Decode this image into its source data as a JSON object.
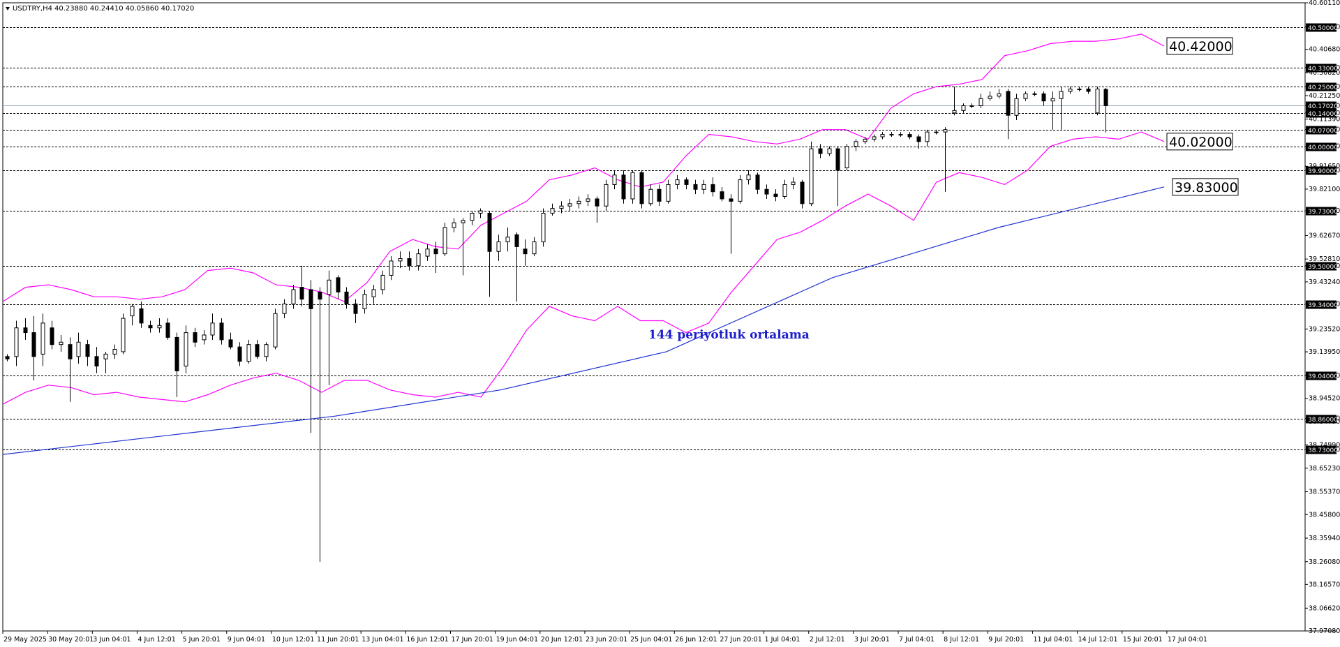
{
  "header": {
    "symbol": "USDTRY,H4",
    "ohlc": "40.23880 40.24410 40.05860 40.17020"
  },
  "annotation": "144 periyotluk ortalama",
  "chart_data": {
    "type": "candlestick",
    "symbol": "USDTRY",
    "timeframe": "H4",
    "last_ohlc": {
      "open": 40.2388,
      "high": 40.2441,
      "low": 40.0586,
      "close": 40.1702
    },
    "y_axis_ticks": [
      "40.60110",
      "40.50000",
      "40.40680",
      "40.33000",
      "40.30820",
      "40.25000",
      "40.21250",
      "40.17020",
      "40.14000",
      "40.11390",
      "40.07000",
      "40.00000",
      "39.91650",
      "39.90000",
      "39.82100",
      "39.73000",
      "39.62670",
      "39.52810",
      "39.50000",
      "39.43240",
      "39.34000",
      "39.23520",
      "39.13950",
      "39.04000",
      "38.94520",
      "38.86000",
      "38.84790",
      "38.74990",
      "38.73000",
      "38.65230",
      "38.55370",
      "38.45800",
      "38.35940",
      "38.26080",
      "38.16570",
      "38.06620",
      "37.97080"
    ],
    "ylim": [
      37.9708,
      40.6011
    ],
    "x_axis_ticks": [
      "29 May 2025",
      "30 May 20:01",
      "3 Jun 04:01",
      "4 Jun 12:01",
      "5 Jun 20:01",
      "9 Jun 04:01",
      "10 Jun 12:01",
      "11 Jun 20:01",
      "13 Jun 04:01",
      "16 Jun 12:01",
      "17 Jun 20:01",
      "19 Jun 04:01",
      "20 Jun 12:01",
      "23 Jun 20:01",
      "25 Jun 04:01",
      "26 Jun 12:01",
      "27 Jun 20:01",
      "1 Jul 04:01",
      "2 Jul 12:01",
      "3 Jul 20:01",
      "7 Jul 04:01",
      "8 Jul 12:01",
      "9 Jul 20:01",
      "11 Jul 04:01",
      "14 Jul 12:01",
      "15 Jul 20:01",
      "17 Jul 04:01"
    ],
    "horizontal_levels": [
      {
        "label": "40.50000",
        "value": 40.5
      },
      {
        "label": "40.33000",
        "value": 40.33
      },
      {
        "label": "40.25000",
        "value": 40.25
      },
      {
        "label": "40.14000",
        "value": 40.14
      },
      {
        "label": "40.07000",
        "value": 40.07
      },
      {
        "label": "40.00000",
        "value": 40.0
      },
      {
        "label": "39.90000",
        "value": 39.9
      },
      {
        "label": "39.73000",
        "value": 39.73
      },
      {
        "label": "39.50000",
        "value": 39.5
      },
      {
        "label": "39.34000",
        "value": 39.34
      },
      {
        "label": "39.04000",
        "value": 39.04
      },
      {
        "label": "38.86000",
        "value": 38.86
      },
      {
        "label": "38.73000",
        "value": 38.73
      }
    ],
    "current_price_label": "40.17020",
    "current_price": 40.1702,
    "callouts": [
      {
        "label": "40.42000",
        "value": 40.42
      },
      {
        "label": "40.02000",
        "value": 40.02
      },
      {
        "label": "39.83000",
        "value": 39.83
      }
    ],
    "series": [
      {
        "kind": "line",
        "color": "#ff00ff",
        "values": [
          38.92,
          38.97,
          39.0,
          38.99,
          38.96,
          38.97,
          38.95,
          38.94,
          38.93,
          38.96,
          39.0,
          39.03,
          39.05,
          39.02,
          38.97,
          39.02,
          39.02,
          38.98,
          38.96,
          38.95,
          38.97,
          38.95,
          39.08,
          39.23,
          39.33,
          39.29,
          39.27,
          39.33,
          39.27,
          39.27,
          39.22,
          39.26,
          39.39,
          39.5,
          39.61,
          39.64,
          39.69,
          39.75,
          39.8,
          39.75,
          39.69,
          39.85,
          39.89,
          39.87,
          39.84,
          39.9,
          40.0,
          40.03,
          40.04,
          40.03,
          40.06,
          40.02
        ],
        "bounds": [
          39.35,
          39.41,
          39.42,
          39.4,
          39.37,
          39.37,
          39.36,
          39.37,
          39.4,
          39.48,
          39.49,
          39.47,
          39.42,
          39.41,
          39.39,
          39.35,
          39.43,
          39.56,
          39.61,
          39.58,
          39.57,
          39.67,
          39.72,
          39.77,
          39.86,
          39.88,
          39.91,
          39.86,
          39.83,
          39.85,
          39.96,
          40.05,
          40.04,
          40.02,
          40.01,
          40.03,
          40.07,
          40.07,
          40.03,
          40.16,
          40.22,
          40.25,
          40.26,
          40.28,
          40.38,
          40.4,
          40.43,
          40.44,
          40.44,
          40.45,
          40.47,
          40.42
        ]
      },
      {
        "name": "144 periyotluk ortalama",
        "kind": "line",
        "color": "#1e32d2",
        "values": [
          38.71,
          38.79,
          38.87,
          38.98,
          39.14,
          39.45,
          39.66,
          39.83
        ]
      }
    ],
    "candles": [
      {
        "o": 39.12,
        "h": 39.13,
        "l": 39.1,
        "c": 39.11
      },
      {
        "o": 39.12,
        "h": 39.27,
        "l": 39.08,
        "c": 39.24
      },
      {
        "o": 39.24,
        "h": 39.28,
        "l": 39.19,
        "c": 39.22
      },
      {
        "o": 39.22,
        "h": 39.29,
        "l": 39.02,
        "c": 39.12
      },
      {
        "o": 39.13,
        "h": 39.3,
        "l": 39.08,
        "c": 39.26
      },
      {
        "o": 39.24,
        "h": 39.27,
        "l": 39.15,
        "c": 39.17
      },
      {
        "o": 39.17,
        "h": 39.21,
        "l": 39.14,
        "c": 39.18
      },
      {
        "o": 39.17,
        "h": 39.2,
        "l": 38.93,
        "c": 39.11
      },
      {
        "o": 39.12,
        "h": 39.22,
        "l": 39.09,
        "c": 39.18
      },
      {
        "o": 39.17,
        "h": 39.19,
        "l": 39.08,
        "c": 39.12
      },
      {
        "o": 39.12,
        "h": 39.16,
        "l": 39.05,
        "c": 39.08
      },
      {
        "o": 39.11,
        "h": 39.14,
        "l": 39.05,
        "c": 39.13
      },
      {
        "o": 39.13,
        "h": 39.17,
        "l": 39.11,
        "c": 39.15
      },
      {
        "o": 39.14,
        "h": 39.3,
        "l": 39.13,
        "c": 39.28
      },
      {
        "o": 39.29,
        "h": 39.34,
        "l": 39.25,
        "c": 39.33
      },
      {
        "o": 39.32,
        "h": 39.35,
        "l": 39.24,
        "c": 39.26
      },
      {
        "o": 39.25,
        "h": 39.27,
        "l": 39.22,
        "c": 39.24
      },
      {
        "o": 39.24,
        "h": 39.28,
        "l": 39.22,
        "c": 39.25
      },
      {
        "o": 39.26,
        "h": 39.28,
        "l": 39.19,
        "c": 39.2
      },
      {
        "o": 39.2,
        "h": 39.22,
        "l": 38.95,
        "c": 39.06
      },
      {
        "o": 39.08,
        "h": 39.25,
        "l": 39.05,
        "c": 39.22
      },
      {
        "o": 39.22,
        "h": 39.24,
        "l": 39.16,
        "c": 39.18
      },
      {
        "o": 39.19,
        "h": 39.23,
        "l": 39.17,
        "c": 39.21
      },
      {
        "o": 39.21,
        "h": 39.3,
        "l": 39.19,
        "c": 39.26
      },
      {
        "o": 39.26,
        "h": 39.28,
        "l": 39.17,
        "c": 39.19
      },
      {
        "o": 39.19,
        "h": 39.22,
        "l": 39.15,
        "c": 39.16
      },
      {
        "o": 39.16,
        "h": 39.18,
        "l": 39.08,
        "c": 39.1
      },
      {
        "o": 39.1,
        "h": 39.19,
        "l": 39.09,
        "c": 39.17
      },
      {
        "o": 39.17,
        "h": 39.19,
        "l": 39.11,
        "c": 39.12
      },
      {
        "o": 39.12,
        "h": 39.18,
        "l": 39.1,
        "c": 39.17
      },
      {
        "o": 39.16,
        "h": 39.32,
        "l": 39.15,
        "c": 39.3
      },
      {
        "o": 39.3,
        "h": 39.36,
        "l": 39.28,
        "c": 39.34
      },
      {
        "o": 39.34,
        "h": 39.42,
        "l": 39.32,
        "c": 39.4
      },
      {
        "o": 39.41,
        "h": 39.5,
        "l": 39.33,
        "c": 39.36
      },
      {
        "o": 39.4,
        "h": 39.44,
        "l": 38.8,
        "c": 39.32
      },
      {
        "o": 39.39,
        "h": 39.41,
        "l": 38.26,
        "c": 39.36
      },
      {
        "o": 39.38,
        "h": 39.48,
        "l": 39.0,
        "c": 39.44
      },
      {
        "o": 39.45,
        "h": 39.46,
        "l": 39.36,
        "c": 39.39
      },
      {
        "o": 39.39,
        "h": 39.41,
        "l": 39.32,
        "c": 39.34
      },
      {
        "o": 39.34,
        "h": 39.36,
        "l": 39.26,
        "c": 39.3
      },
      {
        "o": 39.32,
        "h": 39.4,
        "l": 39.3,
        "c": 39.38
      },
      {
        "o": 39.37,
        "h": 39.42,
        "l": 39.34,
        "c": 39.4
      },
      {
        "o": 39.4,
        "h": 39.48,
        "l": 39.38,
        "c": 39.46
      },
      {
        "o": 39.46,
        "h": 39.54,
        "l": 39.44,
        "c": 39.52
      },
      {
        "o": 39.52,
        "h": 39.56,
        "l": 39.49,
        "c": 39.53
      },
      {
        "o": 39.53,
        "h": 39.56,
        "l": 39.48,
        "c": 39.5
      },
      {
        "o": 39.5,
        "h": 39.57,
        "l": 39.48,
        "c": 39.55
      },
      {
        "o": 39.54,
        "h": 39.59,
        "l": 39.52,
        "c": 39.57
      },
      {
        "o": 39.57,
        "h": 39.6,
        "l": 39.47,
        "c": 39.55
      },
      {
        "o": 39.55,
        "h": 39.68,
        "l": 39.54,
        "c": 39.66
      },
      {
        "o": 39.66,
        "h": 39.7,
        "l": 39.64,
        "c": 39.68
      },
      {
        "o": 39.68,
        "h": 39.7,
        "l": 39.46,
        "c": 39.69
      },
      {
        "o": 39.69,
        "h": 39.73,
        "l": 39.67,
        "c": 39.72
      },
      {
        "o": 39.72,
        "h": 39.74,
        "l": 39.7,
        "c": 39.73
      },
      {
        "o": 39.72,
        "h": 39.73,
        "l": 39.37,
        "c": 39.56
      },
      {
        "o": 39.56,
        "h": 39.63,
        "l": 39.52,
        "c": 39.6
      },
      {
        "o": 39.6,
        "h": 39.66,
        "l": 39.56,
        "c": 39.62
      },
      {
        "o": 39.63,
        "h": 39.64,
        "l": 39.35,
        "c": 39.58
      },
      {
        "o": 39.57,
        "h": 39.61,
        "l": 39.5,
        "c": 39.55
      },
      {
        "o": 39.55,
        "h": 39.62,
        "l": 39.54,
        "c": 39.6
      },
      {
        "o": 39.6,
        "h": 39.74,
        "l": 39.58,
        "c": 39.72
      },
      {
        "o": 39.72,
        "h": 39.76,
        "l": 39.71,
        "c": 39.74
      },
      {
        "o": 39.74,
        "h": 39.77,
        "l": 39.72,
        "c": 39.75
      },
      {
        "o": 39.75,
        "h": 39.78,
        "l": 39.73,
        "c": 39.76
      },
      {
        "o": 39.76,
        "h": 39.79,
        "l": 39.74,
        "c": 39.77
      },
      {
        "o": 39.77,
        "h": 39.8,
        "l": 39.75,
        "c": 39.78
      },
      {
        "o": 39.78,
        "h": 39.79,
        "l": 39.68,
        "c": 39.75
      },
      {
        "o": 39.75,
        "h": 39.86,
        "l": 39.73,
        "c": 39.84
      },
      {
        "o": 39.84,
        "h": 39.9,
        "l": 39.82,
        "c": 39.88
      },
      {
        "o": 39.88,
        "h": 39.9,
        "l": 39.76,
        "c": 39.78
      },
      {
        "o": 39.78,
        "h": 39.9,
        "l": 39.76,
        "c": 39.89
      },
      {
        "o": 39.89,
        "h": 39.9,
        "l": 39.74,
        "c": 39.76
      },
      {
        "o": 39.76,
        "h": 39.84,
        "l": 39.75,
        "c": 39.82
      },
      {
        "o": 39.82,
        "h": 39.84,
        "l": 39.75,
        "c": 39.77
      },
      {
        "o": 39.77,
        "h": 39.86,
        "l": 39.76,
        "c": 39.84
      },
      {
        "o": 39.84,
        "h": 39.88,
        "l": 39.82,
        "c": 39.86
      },
      {
        "o": 39.86,
        "h": 39.87,
        "l": 39.82,
        "c": 39.84
      },
      {
        "o": 39.84,
        "h": 39.86,
        "l": 39.8,
        "c": 39.82
      },
      {
        "o": 39.82,
        "h": 39.86,
        "l": 39.8,
        "c": 39.84
      },
      {
        "o": 39.84,
        "h": 39.87,
        "l": 39.79,
        "c": 39.81
      },
      {
        "o": 39.81,
        "h": 39.83,
        "l": 39.77,
        "c": 39.78
      },
      {
        "o": 39.78,
        "h": 39.8,
        "l": 39.55,
        "c": 39.77
      },
      {
        "o": 39.77,
        "h": 39.88,
        "l": 39.76,
        "c": 39.86
      },
      {
        "o": 39.86,
        "h": 39.9,
        "l": 39.84,
        "c": 39.88
      },
      {
        "o": 39.88,
        "h": 39.89,
        "l": 39.8,
        "c": 39.82
      },
      {
        "o": 39.82,
        "h": 39.84,
        "l": 39.78,
        "c": 39.8
      },
      {
        "o": 39.8,
        "h": 39.82,
        "l": 39.77,
        "c": 39.79
      },
      {
        "o": 39.79,
        "h": 39.86,
        "l": 39.78,
        "c": 39.84
      },
      {
        "o": 39.84,
        "h": 39.87,
        "l": 39.82,
        "c": 39.85
      },
      {
        "o": 39.85,
        "h": 39.86,
        "l": 39.74,
        "c": 39.76
      },
      {
        "o": 39.76,
        "h": 40.02,
        "l": 39.75,
        "c": 39.99
      },
      {
        "o": 39.99,
        "h": 40.01,
        "l": 39.95,
        "c": 39.97
      },
      {
        "o": 39.97,
        "h": 40.0,
        "l": 39.96,
        "c": 39.99
      },
      {
        "o": 39.99,
        "h": 40.0,
        "l": 39.75,
        "c": 39.9
      },
      {
        "o": 39.91,
        "h": 40.01,
        "l": 39.9,
        "c": 40.0
      },
      {
        "o": 40.0,
        "h": 40.03,
        "l": 39.98,
        "c": 40.02
      },
      {
        "o": 40.02,
        "h": 40.04,
        "l": 40.01,
        "c": 40.03
      },
      {
        "o": 40.03,
        "h": 40.05,
        "l": 40.02,
        "c": 40.04
      },
      {
        "o": 40.04,
        "h": 40.06,
        "l": 40.03,
        "c": 40.05
      },
      {
        "o": 40.05,
        "h": 40.06,
        "l": 40.04,
        "c": 40.05
      },
      {
        "o": 40.05,
        "h": 40.06,
        "l": 40.04,
        "c": 40.05
      },
      {
        "o": 40.05,
        "h": 40.06,
        "l": 40.03,
        "c": 40.04
      },
      {
        "o": 40.04,
        "h": 40.05,
        "l": 39.99,
        "c": 40.02
      },
      {
        "o": 40.02,
        "h": 40.07,
        "l": 40.0,
        "c": 40.06
      },
      {
        "o": 40.06,
        "h": 40.07,
        "l": 40.05,
        "c": 40.06
      },
      {
        "o": 40.06,
        "h": 40.08,
        "l": 39.81,
        "c": 40.07
      },
      {
        "o": 40.14,
        "h": 40.25,
        "l": 40.13,
        "c": 40.15
      },
      {
        "o": 40.15,
        "h": 40.18,
        "l": 40.14,
        "c": 40.17
      },
      {
        "o": 40.17,
        "h": 40.18,
        "l": 40.16,
        "c": 40.17
      },
      {
        "o": 40.17,
        "h": 40.22,
        "l": 40.16,
        "c": 40.2
      },
      {
        "o": 40.2,
        "h": 40.23,
        "l": 40.19,
        "c": 40.21
      },
      {
        "o": 40.21,
        "h": 40.24,
        "l": 40.2,
        "c": 40.22
      },
      {
        "o": 40.23,
        "h": 40.24,
        "l": 40.03,
        "c": 40.13
      },
      {
        "o": 40.13,
        "h": 40.22,
        "l": 40.11,
        "c": 40.2
      },
      {
        "o": 40.2,
        "h": 40.23,
        "l": 40.19,
        "c": 40.22
      },
      {
        "o": 40.22,
        "h": 40.23,
        "l": 40.21,
        "c": 40.22
      },
      {
        "o": 40.22,
        "h": 40.23,
        "l": 40.17,
        "c": 40.19
      },
      {
        "o": 40.19,
        "h": 40.23,
        "l": 40.07,
        "c": 40.2
      },
      {
        "o": 40.2,
        "h": 40.25,
        "l": 40.07,
        "c": 40.23
      },
      {
        "o": 40.23,
        "h": 40.25,
        "l": 40.22,
        "c": 40.24
      },
      {
        "o": 40.24,
        "h": 40.25,
        "l": 40.23,
        "c": 40.24
      },
      {
        "o": 40.24,
        "h": 40.25,
        "l": 40.22,
        "c": 40.23
      },
      {
        "o": 40.14,
        "h": 40.25,
        "l": 40.13,
        "c": 40.24
      },
      {
        "o": 40.2388,
        "h": 40.2441,
        "l": 40.0586,
        "c": 40.1702
      }
    ]
  }
}
